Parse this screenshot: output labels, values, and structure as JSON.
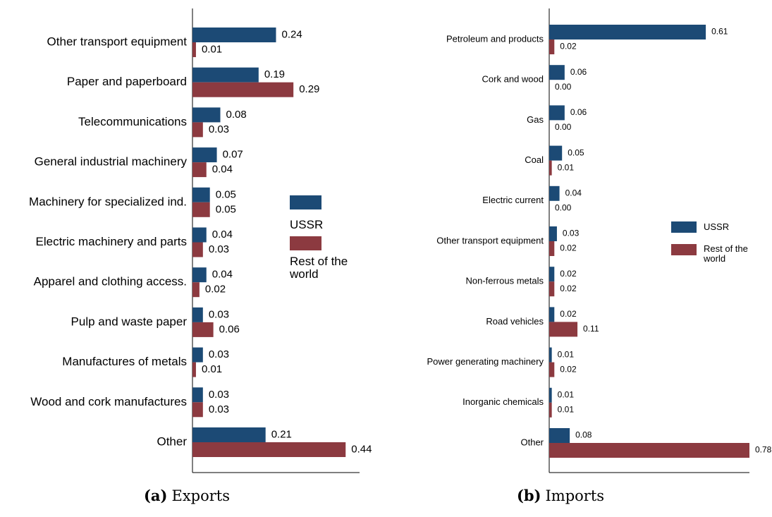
{
  "chart_data": [
    {
      "type": "bar",
      "orientation": "horizontal",
      "caption_label": "(a)",
      "caption": "Exports",
      "categories": [
        "Other transport equipment",
        "Paper and paperboard",
        "Telecommunications",
        "General industrial machinery",
        "Machinery for specialized ind.",
        "Electric machinery and parts",
        "Apparel and clothing access.",
        "Pulp and waste paper",
        "Manufactures of metals",
        "Wood and cork manufactures",
        "Other"
      ],
      "series": [
        {
          "name": "USSR",
          "color": "#1c4a75",
          "values": [
            0.24,
            0.19,
            0.08,
            0.07,
            0.05,
            0.04,
            0.04,
            0.03,
            0.03,
            0.03,
            0.21
          ]
        },
        {
          "name": "Rest of the world",
          "color": "#8c3a40",
          "values": [
            0.01,
            0.29,
            0.03,
            0.04,
            0.05,
            0.03,
            0.02,
            0.06,
            0.01,
            0.03,
            0.44
          ]
        }
      ],
      "xlim": [
        0,
        0.48
      ],
      "legend": "center"
    },
    {
      "type": "bar",
      "orientation": "horizontal",
      "caption_label": "(b)",
      "caption": "Imports",
      "categories": [
        "Petroleum and products",
        "Cork and wood",
        "Gas",
        "Coal",
        "Electric current",
        "Other transport equipment",
        "Non-ferrous metals",
        "Road vehicles",
        "Power generating machinery",
        "Inorganic chemicals",
        "Other"
      ],
      "series": [
        {
          "name": "USSR",
          "color": "#1c4a75",
          "values": [
            0.61,
            0.06,
            0.06,
            0.05,
            0.04,
            0.03,
            0.02,
            0.02,
            0.01,
            0.01,
            0.08
          ]
        },
        {
          "name": "Rest of the world",
          "color": "#8c3a40",
          "values": [
            0.02,
            0,
            0,
            0.01,
            0,
            0.02,
            0.02,
            0.11,
            0.02,
            0.01,
            0.78
          ],
          "value_labels": [
            "0.02",
            "0.00",
            "0.00",
            "0.01",
            "0.00",
            "0.02",
            "0.02",
            "0.11",
            "0.02",
            "0.01",
            "0.78"
          ]
        }
      ],
      "xlim": [
        0,
        0.78
      ],
      "legend": "right"
    }
  ]
}
